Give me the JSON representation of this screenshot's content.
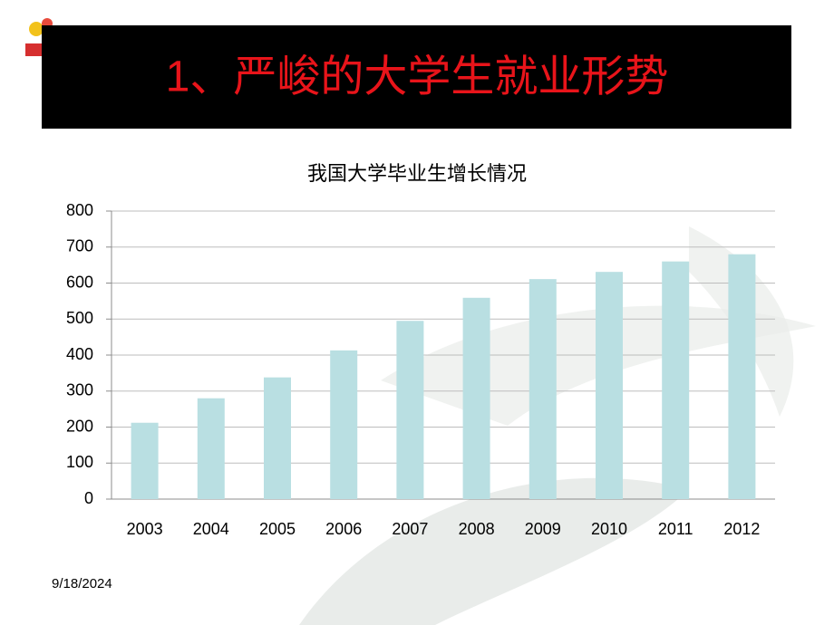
{
  "slide": {
    "title": "1、严峻的大学生就业形势",
    "date": "9/18/2024"
  },
  "chart_data": {
    "type": "bar",
    "title": "我国大学毕业生增长情况",
    "categories": [
      "2003",
      "2004",
      "2005",
      "2006",
      "2007",
      "2008",
      "2009",
      "2010",
      "2011",
      "2012"
    ],
    "values": [
      212,
      280,
      338,
      413,
      495,
      559,
      611,
      631,
      660,
      680
    ],
    "color": "#b9dfe2",
    "ylim": [
      0,
      800
    ],
    "yticks": [
      0,
      100,
      200,
      300,
      400,
      500,
      600,
      700,
      800
    ],
    "grid": true
  }
}
